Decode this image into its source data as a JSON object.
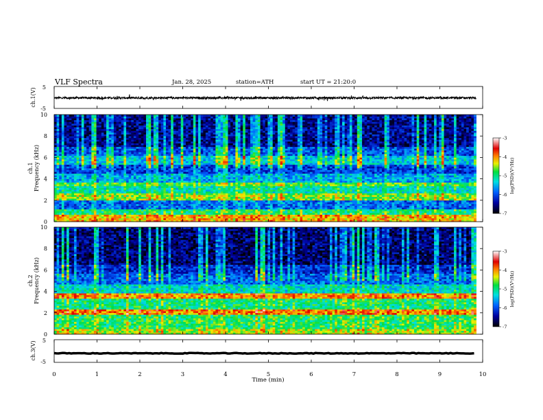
{
  "header": {
    "title": "VLF Spectra",
    "date": "Jan. 28, 2025",
    "station": "station=ATH",
    "start": "start UT =  21:20:0"
  },
  "chart_data": [
    {
      "type": "line",
      "id": "ch1-waveform",
      "ylabel": "ch.1(V)",
      "ylim": [
        -5,
        5
      ],
      "ytick_labels": [
        "-5",
        "5"
      ],
      "xlim": [
        0,
        10
      ],
      "x_end": 9.85,
      "baseline": -0.2,
      "amplitude_approx": 0.5,
      "color": "#000000"
    },
    {
      "type": "heatmap",
      "id": "ch1-spectrogram",
      "title": "ch.1",
      "ylabel": "Frequency (kHz)",
      "ylim": [
        0,
        10
      ],
      "ytick_labels": [
        "0",
        "2",
        "4",
        "6",
        "8",
        "10"
      ],
      "xlim": [
        0,
        10
      ],
      "x_end": 9.85,
      "colorbar": {
        "label": "log(PSD)(V²/Hz)",
        "range": [
          -7,
          -3
        ],
        "ticks": [
          "-3",
          "-4",
          "-5",
          "-6",
          "-7"
        ]
      },
      "bands_log_psd": [
        {
          "f": [
            0.0,
            0.6
          ],
          "v": -4.2
        },
        {
          "f": [
            0.6,
            1.1
          ],
          "v": -5.0
        },
        {
          "f": [
            1.1,
            2.0
          ],
          "v": -5.9
        },
        {
          "f": [
            2.0,
            2.6
          ],
          "v": -4.6
        },
        {
          "f": [
            2.6,
            3.4
          ],
          "v": -5.2
        },
        {
          "f": [
            3.4,
            3.7
          ],
          "v": -4.8
        },
        {
          "f": [
            3.7,
            4.5
          ],
          "v": -5.6
        },
        {
          "f": [
            4.5,
            5.3
          ],
          "v": -6.1
        },
        {
          "f": [
            5.3,
            6.2
          ],
          "v": -5.4
        },
        {
          "f": [
            6.2,
            7.0
          ],
          "v": -6.0
        },
        {
          "f": [
            7.0,
            10.0
          ],
          "v": -6.5
        }
      ]
    },
    {
      "type": "heatmap",
      "id": "ch2-spectrogram",
      "title": "ch.2",
      "ylabel": "Frequency (kHz)",
      "ylim": [
        0,
        10
      ],
      "ytick_labels": [
        "0",
        "2",
        "4",
        "6",
        "8",
        "10"
      ],
      "xlim": [
        0,
        10
      ],
      "x_end": 9.85,
      "colorbar": {
        "label": "log(PSD)(V²/Hz)",
        "range": [
          -7,
          -3
        ],
        "ticks": [
          "-3",
          "-4",
          "-5",
          "-6",
          "-7"
        ]
      },
      "bands_log_psd": [
        {
          "f": [
            0.0,
            0.5
          ],
          "v": -4.5
        },
        {
          "f": [
            0.5,
            1.8
          ],
          "v": -4.9
        },
        {
          "f": [
            1.8,
            2.3
          ],
          "v": -4.0
        },
        {
          "f": [
            2.3,
            3.3
          ],
          "v": -5.0
        },
        {
          "f": [
            3.3,
            3.8
          ],
          "v": -4.1
        },
        {
          "f": [
            3.8,
            4.6
          ],
          "v": -5.3
        },
        {
          "f": [
            4.6,
            5.6
          ],
          "v": -5.9
        },
        {
          "f": [
            5.6,
            6.5
          ],
          "v": -6.2
        },
        {
          "f": [
            6.5,
            10.0
          ],
          "v": -6.6
        }
      ]
    },
    {
      "type": "line",
      "id": "ch3-waveform",
      "ylabel": "ch.3(V)",
      "xlabel": "Time (min)",
      "ylim": [
        -5,
        5
      ],
      "ytick_labels": [
        "-5",
        "5"
      ],
      "xlim": [
        0,
        10
      ],
      "x_end": 9.85,
      "xtick_labels": [
        "0",
        "1",
        "2",
        "3",
        "4",
        "5",
        "6",
        "7",
        "8",
        "9",
        "10"
      ],
      "baseline": -1.0,
      "amplitude_approx": 0.15,
      "color": "#000000"
    }
  ]
}
